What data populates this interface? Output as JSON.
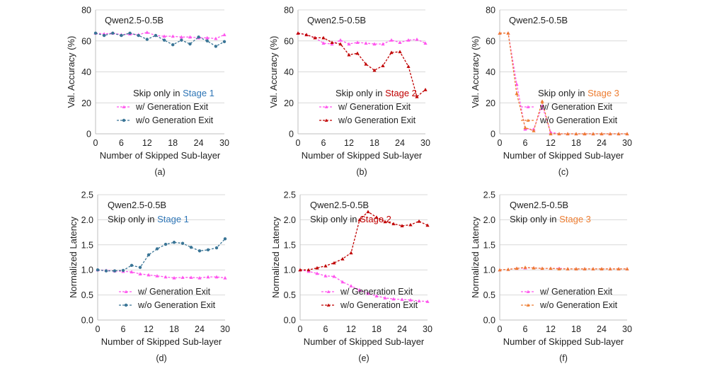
{
  "figure": {
    "x_ticks": [
      0,
      6,
      12,
      18,
      24,
      30
    ]
  },
  "chart_data": [
    {
      "type": "line",
      "panel_label": "(a)",
      "model_label": "Qwen2.5-0.5B",
      "skip_prefix": "Skip only in ",
      "stage_text": "Stage 1",
      "stage_color": "#2e75b6",
      "xlabel": "Number of Skipped Sub-layer",
      "ylabel": "Val. Accuracy (%)",
      "xlim": [
        0,
        30
      ],
      "ylim": [
        0,
        80
      ],
      "yticks": [
        0,
        20,
        40,
        60,
        80
      ],
      "ytick_labels": [
        "0",
        "20",
        "40",
        "60",
        "80"
      ],
      "legend_position": "bottom-right",
      "x": [
        0,
        2,
        4,
        6,
        8,
        10,
        12,
        14,
        16,
        18,
        20,
        22,
        24,
        26,
        28,
        30
      ],
      "series": [
        {
          "name": "w/ Generation Exit",
          "color": "#ff55ee",
          "marker": "triangle",
          "values": [
            65,
            64.5,
            65,
            64,
            64.5,
            64,
            65.5,
            63.5,
            63,
            63,
            62.5,
            62.5,
            62,
            62,
            61.5,
            64
          ]
        },
        {
          "name": "w/o Generation Exit",
          "color": "#3a7596",
          "marker": "circle",
          "values": [
            65,
            63.5,
            65,
            63.5,
            65,
            63.5,
            61,
            63.5,
            60.5,
            57.5,
            60.5,
            58,
            62.5,
            60,
            56.5,
            59.5
          ]
        }
      ]
    },
    {
      "type": "line",
      "panel_label": "(b)",
      "model_label": "Qwen2.5-0.5B",
      "skip_prefix": "Skip only in ",
      "stage_text": "Stage 2",
      "stage_color": "#c00000",
      "xlabel": "Number of Skipped Sub-layer",
      "ylabel": "Val. Accuracy (%)",
      "xlim": [
        0,
        30
      ],
      "ylim": [
        0,
        80
      ],
      "yticks": [
        0,
        20,
        40,
        60,
        80
      ],
      "ytick_labels": [
        "0",
        "20",
        "40",
        "60",
        "80"
      ],
      "legend_position": "bottom-right",
      "x": [
        0,
        2,
        4,
        6,
        8,
        10,
        12,
        14,
        16,
        18,
        20,
        22,
        24,
        26,
        28,
        30
      ],
      "series": [
        {
          "name": "w/ Generation Exit",
          "color": "#ff55ee",
          "marker": "triangle",
          "values": [
            65,
            64,
            62,
            58.5,
            58,
            60.5,
            58,
            59,
            58.5,
            58,
            58,
            60.5,
            59,
            60.5,
            61,
            58.5
          ]
        },
        {
          "name": "w/o Generation Exit",
          "color": "#c00000",
          "marker": "triangle",
          "values": [
            65,
            64,
            62,
            62,
            59,
            58,
            51,
            52,
            45,
            41,
            44,
            52.5,
            53,
            43.5,
            24,
            28.5
          ]
        }
      ]
    },
    {
      "type": "line",
      "panel_label": "(c)",
      "model_label": "Qwen2.5-0.5B",
      "skip_prefix": "Skip only in ",
      "stage_text": "Stage 3",
      "stage_color": "#ed7d31",
      "xlabel": "Number of Skipped Sub-layer",
      "ylabel": "Val. Accuracy (%)",
      "xlim": [
        0,
        30
      ],
      "ylim": [
        0,
        80
      ],
      "yticks": [
        0,
        20,
        40,
        60,
        80
      ],
      "ytick_labels": [
        "0",
        "20",
        "40",
        "60",
        "80"
      ],
      "legend_position": "bottom-right",
      "x": [
        0,
        2,
        4,
        6,
        8,
        10,
        12,
        14,
        16,
        18,
        20,
        22,
        24,
        26,
        28,
        30
      ],
      "series": [
        {
          "name": "w/ Generation Exit",
          "color": "#ff55ee",
          "marker": "triangle",
          "values": [
            65,
            65,
            32,
            3,
            3,
            18,
            1,
            0,
            0,
            0,
            0,
            0,
            0,
            0,
            0,
            0
          ]
        },
        {
          "name": "w/o Generation Exit",
          "color": "#ed7d31",
          "marker": "triangle",
          "values": [
            65,
            65,
            26,
            4,
            2,
            21,
            0,
            0,
            0,
            0,
            0,
            0,
            0,
            0,
            0,
            0
          ]
        }
      ]
    },
    {
      "type": "line",
      "panel_label": "(d)",
      "model_label": "Qwen2.5-0.5B",
      "skip_prefix": "Skip only in ",
      "stage_text": "Stage 1",
      "stage_color": "#2e75b6",
      "xlabel": "Number of Skipped Sub-layer",
      "ylabel": "Normalized Latency",
      "xlim": [
        0,
        30
      ],
      "ylim": [
        0,
        2.5
      ],
      "yticks": [
        0,
        0.5,
        1,
        1.5,
        2,
        2.5
      ],
      "ytick_labels": [
        "0.0",
        "0.5",
        "1.0",
        "1.5",
        "2.0",
        "2.5"
      ],
      "legend_position": "bottom-right",
      "x": [
        0,
        2,
        4,
        6,
        8,
        10,
        12,
        14,
        16,
        18,
        20,
        22,
        24,
        26,
        28,
        30
      ],
      "series": [
        {
          "name": "w/ Generation Exit",
          "color": "#ff55ee",
          "marker": "triangle",
          "values": [
            1.0,
            0.99,
            0.98,
            0.97,
            0.96,
            0.92,
            0.9,
            0.88,
            0.86,
            0.84,
            0.85,
            0.85,
            0.84,
            0.86,
            0.86,
            0.84
          ]
        },
        {
          "name": "w/o Generation Exit",
          "color": "#3a7596",
          "marker": "circle",
          "values": [
            1.0,
            0.98,
            0.98,
            0.99,
            1.09,
            1.05,
            1.3,
            1.42,
            1.51,
            1.55,
            1.53,
            1.45,
            1.38,
            1.4,
            1.44,
            1.62
          ]
        }
      ]
    },
    {
      "type": "line",
      "panel_label": "(e)",
      "model_label": "Qwen2.5-0.5B",
      "skip_prefix": "Skip only in ",
      "stage_text": "Stage 2",
      "stage_color": "#c00000",
      "xlabel": "Number of Skipped Sub-layer",
      "ylabel": "Normalized Latency",
      "xlim": [
        0,
        30
      ],
      "ylim": [
        0,
        2.5
      ],
      "yticks": [
        0,
        0.5,
        1,
        1.5,
        2,
        2.5
      ],
      "ytick_labels": [
        "0.0",
        "0.5",
        "1.0",
        "1.5",
        "2.0",
        "2.5"
      ],
      "legend_position": "bottom-center",
      "x": [
        0,
        2,
        4,
        6,
        8,
        10,
        12,
        14,
        16,
        18,
        20,
        22,
        24,
        26,
        28,
        30
      ],
      "series": [
        {
          "name": "w/ Generation Exit",
          "color": "#ff55ee",
          "marker": "triangle",
          "values": [
            1.0,
            0.97,
            0.93,
            0.88,
            0.87,
            0.76,
            0.68,
            0.6,
            0.53,
            0.48,
            0.44,
            0.42,
            0.41,
            0.4,
            0.38,
            0.37
          ]
        },
        {
          "name": "w/o Generation Exit",
          "color": "#c00000",
          "marker": "triangle",
          "values": [
            1.0,
            1.0,
            1.04,
            1.08,
            1.14,
            1.22,
            1.34,
            2.0,
            2.16,
            2.05,
            1.96,
            1.92,
            1.88,
            1.9,
            1.97,
            1.89
          ]
        }
      ]
    },
    {
      "type": "line",
      "panel_label": "(f)",
      "model_label": "Qwen2.5-0.5B",
      "skip_prefix": "Skip only in ",
      "stage_text": "Stage 3",
      "stage_color": "#ed7d31",
      "xlabel": "Number of Skipped Sub-layer",
      "ylabel": "Normalized Latency",
      "xlim": [
        0,
        30
      ],
      "ylim": [
        0,
        2.5
      ],
      "yticks": [
        0,
        0.5,
        1,
        1.5,
        2,
        2.5
      ],
      "ytick_labels": [
        "0.0",
        "0.5",
        "1.0",
        "1.5",
        "2.0",
        "2.5"
      ],
      "legend_position": "bottom-right",
      "x": [
        0,
        2,
        4,
        6,
        8,
        10,
        12,
        14,
        16,
        18,
        20,
        22,
        24,
        26,
        28,
        30
      ],
      "series": [
        {
          "name": "w/ Generation Exit",
          "color": "#ff55ee",
          "marker": "triangle",
          "values": [
            1.0,
            1.01,
            1.03,
            1.04,
            1.04,
            1.03,
            1.03,
            1.03,
            1.02,
            1.02,
            1.02,
            1.02,
            1.02,
            1.02,
            1.02,
            1.02
          ]
        },
        {
          "name": "w/o Generation Exit",
          "color": "#ed7d31",
          "marker": "triangle",
          "values": [
            1.0,
            1.01,
            1.03,
            1.05,
            1.04,
            1.03,
            1.03,
            1.02,
            1.02,
            1.02,
            1.02,
            1.02,
            1.02,
            1.02,
            1.02,
            1.02
          ]
        }
      ]
    }
  ]
}
